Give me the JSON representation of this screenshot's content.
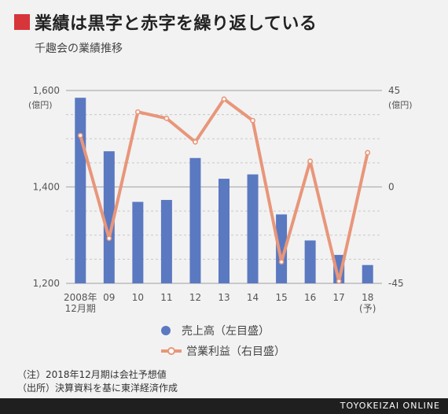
{
  "header": {
    "title": "業績は黒字と赤字を繰り返している",
    "subtitle": "千趣会の業績推移"
  },
  "colors": {
    "accent": "#d6353a",
    "bar": "#5b79c1",
    "line": "#e8967a",
    "grid": "#bbbbbb"
  },
  "chart_data": {
    "type": "bar+line",
    "categories": [
      "2008年\n12月期",
      "09",
      "10",
      "11",
      "12",
      "13",
      "14",
      "15",
      "16",
      "17",
      "18\n(予)"
    ],
    "left_axis": {
      "unit": "(億円)",
      "range": [
        1200,
        1600
      ],
      "ticks": [
        "1,200",
        "1,400",
        "1,600"
      ],
      "tick_values": [
        1200,
        1400,
        1600
      ]
    },
    "right_axis": {
      "unit": "(億円)",
      "range": [
        -45,
        45
      ],
      "ticks": [
        "-45",
        "0",
        "45"
      ],
      "tick_values": [
        -45,
        0,
        45
      ]
    },
    "series": [
      {
        "name": "売上高（左目盛）",
        "type": "bar",
        "axis": "left",
        "values": [
          1585,
          1474,
          1369,
          1373,
          1460,
          1417,
          1426,
          1343,
          1289,
          1259,
          1238
        ]
      },
      {
        "name": "営業利益（右目盛）",
        "type": "line",
        "axis": "right",
        "values": [
          24,
          -24,
          35,
          32,
          21,
          41,
          31,
          -35,
          12,
          -44,
          16
        ]
      }
    ],
    "grid": true,
    "legend": "bottom"
  },
  "notes": [
    "（注）2018年12月期は会社予想値",
    "（出所）決算資料を基に東洋経済作成"
  ],
  "footer": {
    "brand": "TOYOKEIZAI ONLINE"
  }
}
